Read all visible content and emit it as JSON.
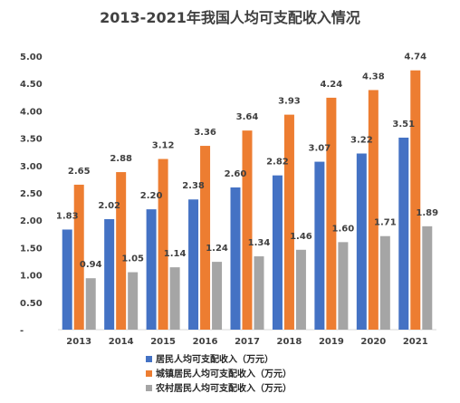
{
  "chart_data": {
    "type": "bar",
    "title": "2013-2021年我国人均可支配收入情况",
    "categories": [
      "2013",
      "2014",
      "2015",
      "2016",
      "2017",
      "2018",
      "2019",
      "2020",
      "2021"
    ],
    "series": [
      {
        "name": "居民人均可支配收入（万元）",
        "values": [
          1.83,
          2.02,
          2.2,
          2.38,
          2.6,
          2.82,
          3.07,
          3.22,
          3.51
        ],
        "labels": [
          "1.83",
          "2.02",
          "2.20",
          "2.38",
          "2.60",
          "2.82",
          "3.07",
          "3.22",
          "3.51"
        ],
        "color": "#4472C4"
      },
      {
        "name": "城镇居民人均可支配收入（万元）",
        "values": [
          2.65,
          2.88,
          3.12,
          3.36,
          3.64,
          3.93,
          4.24,
          4.38,
          4.74
        ],
        "labels": [
          "2.65",
          "2.88",
          "3.12",
          "3.36",
          "3.64",
          "3.93",
          "4.24",
          "4.38",
          "4.74"
        ],
        "color": "#ED7D31"
      },
      {
        "name": "农村居民人均可支配收入（万元）",
        "values": [
          0.94,
          1.05,
          1.14,
          1.24,
          1.34,
          1.46,
          1.6,
          1.71,
          1.89
        ],
        "labels": [
          "0.94",
          "1.05",
          "1.14",
          "1.24",
          "1.34",
          "1.46",
          "1.60",
          "1.71",
          "1.89"
        ],
        "color": "#A5A5A5"
      }
    ],
    "y_ticks": [
      "-",
      "0.50",
      "1.00",
      "1.50",
      "2.00",
      "2.50",
      "3.00",
      "3.50",
      "4.00",
      "4.50",
      "5.00"
    ],
    "ylim": [
      0,
      5
    ],
    "grid": false,
    "legend": "bottom"
  }
}
